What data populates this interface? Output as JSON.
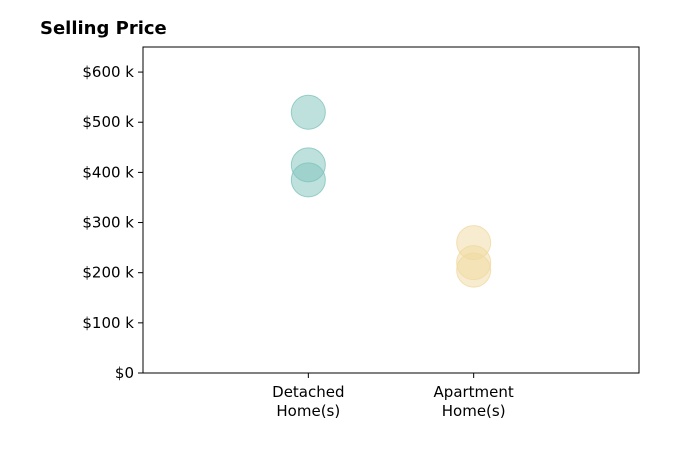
{
  "chart_data": {
    "type": "strip",
    "title": "Selling Price",
    "categories": [
      [
        "Detached",
        "Home(s)"
      ],
      [
        "Apartment",
        "Home(s)"
      ]
    ],
    "values": [
      [
        520000,
        415000,
        385000
      ],
      [
        260000,
        220000,
        205000
      ]
    ],
    "colors": [
      "#7fc4bb",
      "#f0d9a0"
    ],
    "ylim": [
      0,
      650000
    ],
    "yticks": [
      {
        "value": 0,
        "label": "$0"
      },
      {
        "value": 100000,
        "label": "$100 k"
      },
      {
        "value": 200000,
        "label": "$200 k"
      },
      {
        "value": 300000,
        "label": "$300 k"
      },
      {
        "value": 400000,
        "label": "$400 k"
      },
      {
        "value": 500000,
        "label": "$500 k"
      },
      {
        "value": 600000,
        "label": "$600 k"
      }
    ]
  }
}
